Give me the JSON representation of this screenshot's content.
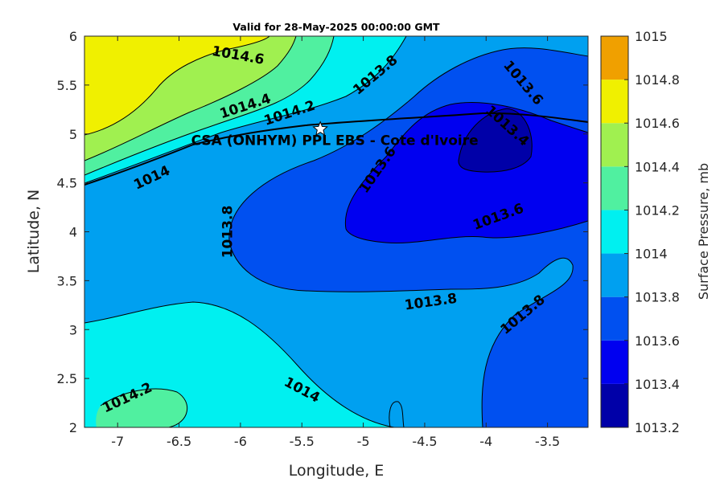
{
  "chart_data": {
    "type": "contour",
    "title": "Valid for 28-May-2025 00:00:00 GMT",
    "xlabel": "Longitude, E",
    "ylabel": "Latitude, N",
    "xlim": [
      -7.27,
      -3.17
    ],
    "ylim": [
      2,
      6
    ],
    "x_ticks": [
      -7,
      -6.5,
      -6,
      -5.5,
      -5,
      -4.5,
      -4,
      -3.5
    ],
    "x_tick_labels": [
      "-7",
      "-6.5",
      "-6",
      "-5.5",
      "-5",
      "-4.5",
      "-4",
      "-3.5"
    ],
    "y_ticks": [
      2,
      2.5,
      3,
      3.5,
      4,
      4.5,
      5,
      5.5,
      6
    ],
    "y_tick_labels": [
      "2",
      "2.5",
      "3",
      "3.5",
      "4",
      "4.5",
      "5",
      "5.5",
      "6"
    ],
    "colorbar": {
      "label": "Surface Pressure, mb",
      "levels": [
        1013.2,
        1013.4,
        1013.6,
        1013.8,
        1014,
        1014.2,
        1014.4,
        1014.6,
        1014.8,
        1015
      ],
      "level_labels": [
        "1013.2",
        "1013.4",
        "1013.6",
        "1013.8",
        "1014",
        "1014.2",
        "1014.4",
        "1014.6",
        "1014.8",
        "1015"
      ],
      "colors": [
        "#0000A8",
        "#0000F0",
        "#0050F0",
        "#00A0F0",
        "#00F0F0",
        "#50F0A0",
        "#A0F050",
        "#F0F000",
        "#F0A000",
        "#F05000"
      ]
    },
    "contour_labels": [
      {
        "text": "1014.6",
        "lon": -6.02,
        "lat": 5.8,
        "angle": 10
      },
      {
        "text": "1014.4",
        "lon": -5.96,
        "lat": 5.28,
        "angle": -18
      },
      {
        "text": "1014.2",
        "lon": -5.6,
        "lat": 5.21,
        "angle": -18
      },
      {
        "text": "1014",
        "lon": -6.72,
        "lat": 4.55,
        "angle": -25
      },
      {
        "text": "1013.8",
        "lon": -4.9,
        "lat": 5.6,
        "angle": -40
      },
      {
        "text": "1013.6",
        "lon": -3.7,
        "lat": 5.52,
        "angle": 50
      },
      {
        "text": "1013.4",
        "lon": -3.83,
        "lat": 5.08,
        "angle": 42
      },
      {
        "text": "1013.6",
        "lon": -4.88,
        "lat": 4.63,
        "angle": -55
      },
      {
        "text": "1013.6",
        "lon": -3.9,
        "lat": 4.15,
        "angle": -20
      },
      {
        "text": "1013.8",
        "lon": -6.1,
        "lat": 4.0,
        "angle": -90
      },
      {
        "text": "1013.8",
        "lon": -4.45,
        "lat": 3.28,
        "angle": -8
      },
      {
        "text": "1013.8",
        "lon": -3.7,
        "lat": 3.15,
        "angle": -40
      },
      {
        "text": "1014",
        "lon": -5.5,
        "lat": 2.38,
        "angle": 28
      },
      {
        "text": "1014.2",
        "lon": -6.92,
        "lat": 2.3,
        "angle": -25
      }
    ],
    "site": {
      "label": "CSA (ONHYM) PPL EBS  - Cote d'Ivoire",
      "lon": -5.35,
      "lat": 5.05
    }
  }
}
